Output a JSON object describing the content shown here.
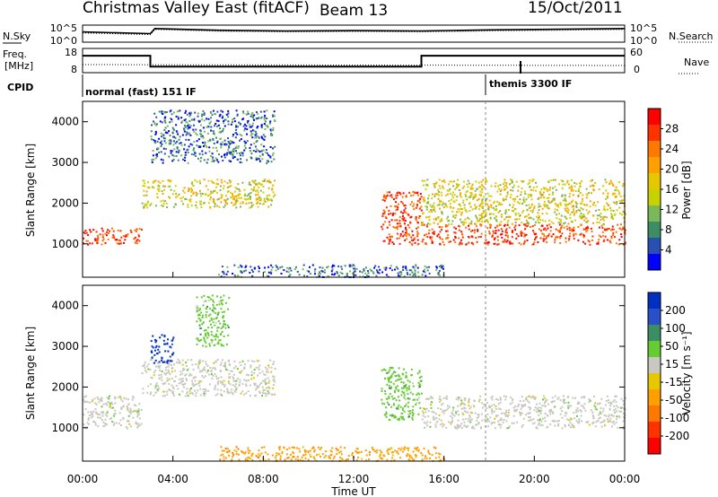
{
  "header": {
    "title": "Christmas Valley East (fitACF)",
    "beam": "Beam 13",
    "date": "15/Oct/2011"
  },
  "panel_labels": {
    "nsky": "N.Sky",
    "freq_line1": "Freq.",
    "freq_line2": "[MHz]",
    "cpid": "CPID",
    "nsearch": "N.Search",
    "nave": "Nave"
  },
  "axes": {
    "nsky_ticks": [
      "10^5",
      "10^0"
    ],
    "nsearch_ticks": [
      "10^5",
      "10^0"
    ],
    "freq_ticks": [
      "18",
      "8"
    ],
    "nave_ticks": [
      "60",
      "0"
    ],
    "range_ticks": [
      "4000",
      "3000",
      "2000",
      "1000"
    ],
    "range_label": "Slant Range [km]",
    "time_ticks": [
      "00:00",
      "04:00",
      "08:00",
      "12:00",
      "16:00",
      "20:00",
      "00:00"
    ],
    "time_label": "Time UT"
  },
  "cpid_labels": [
    "normal (fast) 151 IF",
    "themis 3300 IF"
  ],
  "colorbars": {
    "power": {
      "label": "Power [dB]",
      "ticks": [
        "28",
        "24",
        "20",
        "16",
        "12",
        "8",
        "4"
      ],
      "colors": [
        "#ff0000",
        "#ff3200",
        "#ff7800",
        "#ffa000",
        "#e6c800",
        "#c8d200",
        "#7ab85a",
        "#3c8c64",
        "#2850b4",
        "#0000ff"
      ]
    },
    "velocity": {
      "label": "Velocity [m s⁻¹]",
      "ticks": [
        "200",
        "100",
        "50",
        "15",
        "-15",
        "-50",
        "-100",
        "-200"
      ],
      "colors": [
        "#0030c0",
        "#2850c8",
        "#3c8c64",
        "#66cc33",
        "#c8c8c0",
        "#e6c800",
        "#ffa000",
        "#ff7800",
        "#ff3200",
        "#ff0000"
      ]
    }
  },
  "chart_data": [
    {
      "type": "heatmap",
      "title": "Power",
      "xlabel": "Time UT",
      "ylabel": "Slant Range [km]",
      "xlim": [
        0,
        24
      ],
      "ylim": [
        180,
        4500
      ],
      "zlabel": "Power [dB]",
      "zlim": [
        0,
        30
      ],
      "features": [
        {
          "t0": 0.0,
          "t1": 2.6,
          "r0": 1000,
          "r1": 1400,
          "level": "high"
        },
        {
          "t0": 2.6,
          "t1": 8.5,
          "r0": 1900,
          "r1": 2600,
          "level": "mid"
        },
        {
          "t0": 3.0,
          "t1": 8.5,
          "r0": 3000,
          "r1": 4300,
          "level": "low"
        },
        {
          "t0": 13.2,
          "t1": 15.0,
          "r0": 1000,
          "r1": 2300,
          "level": "high"
        },
        {
          "t0": 15.0,
          "t1": 24.0,
          "r0": 1000,
          "r1": 1500,
          "level": "high"
        },
        {
          "t0": 15.0,
          "t1": 24.0,
          "r0": 1500,
          "r1": 2600,
          "level": "mid"
        },
        {
          "t0": 6.0,
          "t1": 16.0,
          "r0": 200,
          "r1": 500,
          "level": "low"
        }
      ]
    },
    {
      "type": "heatmap",
      "title": "Velocity",
      "xlabel": "Time UT",
      "ylabel": "Slant Range [km]",
      "xlim": [
        0,
        24
      ],
      "ylim": [
        180,
        4500
      ],
      "zlabel": "Velocity [m s⁻¹]",
      "zlim": [
        -200,
        200
      ],
      "features": [
        {
          "t0": 0.0,
          "t1": 2.6,
          "r0": 1000,
          "r1": 1800,
          "velocity": 0
        },
        {
          "t0": 2.6,
          "t1": 8.5,
          "r0": 1800,
          "r1": 2700,
          "velocity": 0
        },
        {
          "t0": 3.0,
          "t1": 4.0,
          "r0": 2600,
          "r1": 3300,
          "velocity": 200
        },
        {
          "t0": 5.0,
          "t1": 6.5,
          "r0": 3000,
          "r1": 4300,
          "velocity": 50
        },
        {
          "t0": 13.2,
          "t1": 15.0,
          "r0": 1200,
          "r1": 2500,
          "velocity": 50
        },
        {
          "t0": 15.0,
          "t1": 24.0,
          "r0": 1000,
          "r1": 1800,
          "velocity": 0
        },
        {
          "t0": 6.0,
          "t1": 16.0,
          "r0": 200,
          "r1": 550,
          "velocity": -50
        }
      ]
    },
    {
      "type": "line",
      "title": "N.Sky",
      "series": [
        {
          "name": "N.Sky"
        }
      ],
      "x": [
        0,
        3,
        3.2,
        6,
        9,
        12,
        15,
        18,
        24
      ],
      "y": [
        3,
        2.5,
        4,
        3.5,
        3.3,
        3.4,
        3.3,
        3.6,
        4
      ]
    },
    {
      "type": "line",
      "title": "Freq. [MHz]",
      "series": [
        {
          "name": "Freq."
        }
      ],
      "x": [
        0,
        3.0,
        3.0,
        15.0,
        15.0,
        24
      ],
      "y": [
        15,
        15,
        10.5,
        10.5,
        15,
        15
      ]
    }
  ]
}
